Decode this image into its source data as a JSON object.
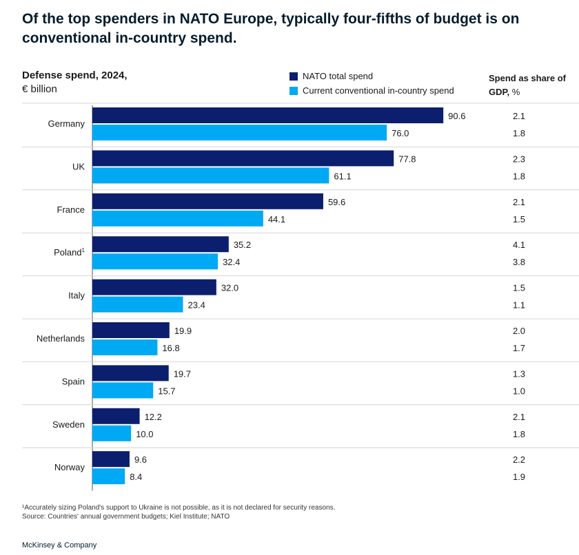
{
  "title": "Of the top spenders in NATO Europe, typically four-fifths of budget is on conventional in-country spend.",
  "subtitle": "Defense spend, 2024,",
  "unit": "€ billion",
  "gdp_header": {
    "main": "Spend as share of GDP,",
    "unit": " %"
  },
  "colors": {
    "nato_total": "#0b1f6e",
    "conventional": "#00a9f4",
    "divider": "#d4d4d4"
  },
  "chart_data": {
    "type": "bar",
    "orientation": "horizontal",
    "categories": [
      "Germany",
      "UK",
      "France",
      "Poland",
      "Italy",
      "Netherlands",
      "Spain",
      "Sweden",
      "Norway"
    ],
    "category_superscripts": [
      "",
      "",
      "",
      "1",
      "",
      "",
      "",
      "",
      ""
    ],
    "series": [
      {
        "name": "NATO total spend",
        "values": [
          90.6,
          77.8,
          59.6,
          35.2,
          32.0,
          19.9,
          19.7,
          12.2,
          9.6
        ],
        "labels": [
          "90.6",
          "77.8",
          "59.6",
          "35.2",
          "32.0",
          "19.9",
          "19.7",
          "12.2",
          "9.6"
        ]
      },
      {
        "name": "Current conventional in-country spend",
        "values": [
          76.0,
          61.1,
          44.1,
          32.4,
          23.4,
          16.8,
          15.7,
          10.0,
          8.4
        ],
        "labels": [
          "76.0",
          "61.1",
          "44.1",
          "32.4",
          "23.4",
          "16.8",
          "15.7",
          "10.0",
          "8.4"
        ]
      }
    ],
    "gdp_share": {
      "nato_total": [
        "2.1",
        "2.3",
        "2.1",
        "4.1",
        "1.5",
        "2.0",
        "1.3",
        "2.1",
        "2.2"
      ],
      "conventional": [
        "1.8",
        "1.8",
        "1.5",
        "3.8",
        "1.1",
        "1.7",
        "1.0",
        "1.8",
        "1.9"
      ]
    },
    "xlim": [
      0,
      100
    ],
    "legend": "top"
  },
  "footnote": "¹Accurately sizing Poland's support to Ukraine is not possible, as it is not declared for security reasons.",
  "source": " Source: Countries' annual government budgets; Kiel Institute; NATO",
  "brand": "McKinsey & Company"
}
